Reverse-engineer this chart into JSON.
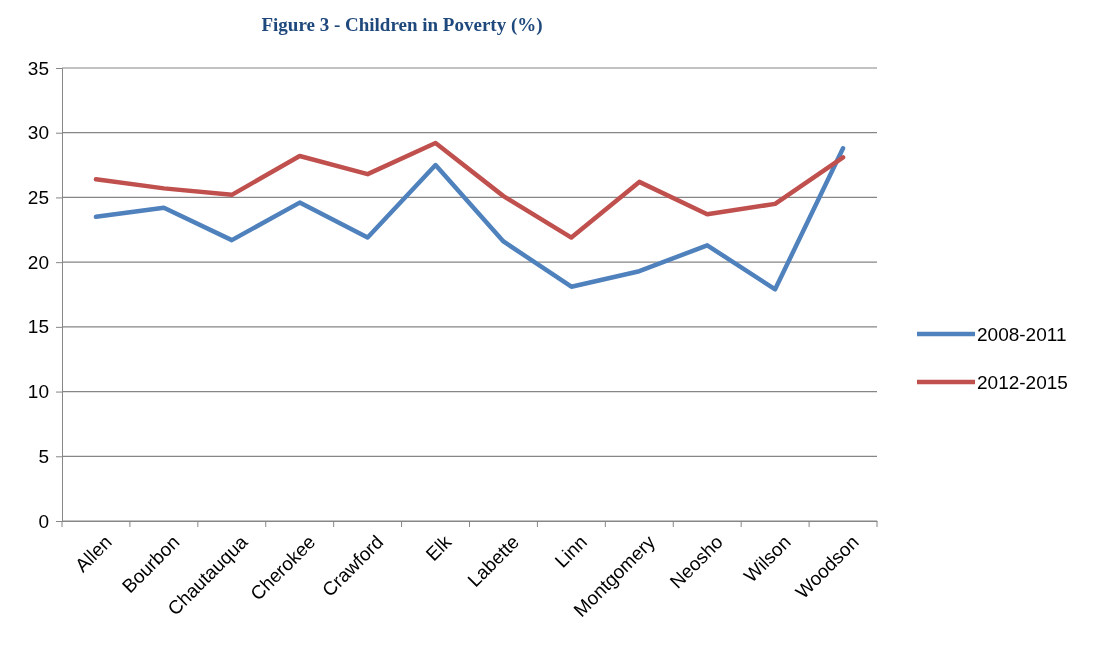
{
  "chart_data": {
    "type": "line",
    "title": "Figure 3 - Children in Poverty (%)",
    "categories": [
      "Allen",
      "Bourbon",
      "Chautauqua",
      "Cherokee",
      "Crawford",
      "Elk",
      "Labette",
      "Linn",
      "Montgomery",
      "Neosho",
      "Wilson",
      "Woodson"
    ],
    "series": [
      {
        "name": "2008-2011",
        "color": "#4f81bd",
        "values": [
          23.5,
          24.2,
          21.7,
          24.6,
          21.9,
          27.5,
          21.6,
          18.1,
          19.3,
          21.3,
          17.9,
          28.8
        ]
      },
      {
        "name": "2012-2015",
        "color": "#c0504d",
        "values": [
          26.4,
          25.7,
          25.2,
          28.2,
          26.8,
          29.2,
          25.1,
          21.9,
          26.2,
          23.7,
          24.5,
          28.1
        ]
      }
    ],
    "ylim": [
      0,
      35
    ],
    "yticks": [
      0,
      5,
      10,
      15,
      20,
      25,
      30,
      35
    ],
    "grid": "y",
    "legend": "right",
    "marker": "none",
    "line_style": "solid"
  }
}
